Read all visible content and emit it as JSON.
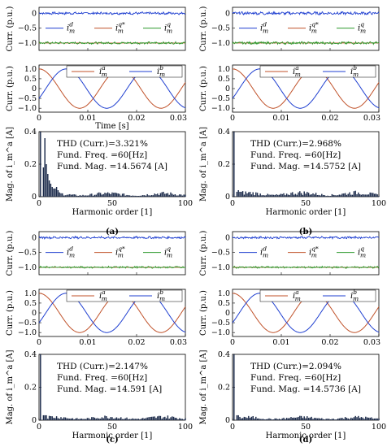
{
  "figure": {
    "subfigure_labels": [
      "(a)",
      "(b)",
      "(c)",
      "(d)"
    ]
  },
  "colors": {
    "d_axis": "#1f3fd0",
    "q_star": "#c0522a",
    "q_axis": "#2e9a2e",
    "phase_a": "#c0522a",
    "phase_b": "#1f3fd0",
    "harm_bar": "#1b2a4a"
  },
  "chart_data": [
    {
      "panel": "(a)",
      "top": {
        "type": "line",
        "ylabel": "Curr. (p.u.)",
        "yticks": [
          "0",
          "−0.5",
          "−1.0"
        ],
        "ylim": [
          -1.25,
          0.2
        ],
        "x_range": [
          0,
          0.03
        ],
        "series": [
          {
            "name": "i_m^d",
            "label_base": "i",
            "label_sub": "m",
            "label_sup": "d",
            "color": "#1f3fd0",
            "value": 0.0,
            "ripple": 0.035
          },
          {
            "name": "i_m^q*",
            "label_base": "i",
            "label_sub": "m",
            "label_sup": "q*",
            "color": "#c0522a",
            "value": -1.0,
            "ripple": 0.0
          },
          {
            "name": "i_m^q",
            "label_base": "i",
            "label_sub": "m",
            "label_sup": "q",
            "color": "#2e9a2e",
            "value": -1.0,
            "ripple": 0.03
          }
        ]
      },
      "middle": {
        "type": "line",
        "ylabel": "Curr. (p.u.)",
        "xlabel": "Time [s]",
        "xticks": [
          "0",
          "0.01",
          "0.02",
          "0.03"
        ],
        "yticks": [
          "1.0",
          "0.5",
          "0",
          "−0.5",
          "−1.0"
        ],
        "ylim": [
          -1.2,
          1.2
        ],
        "x_range": [
          0,
          0.03
        ],
        "series": [
          {
            "name": "i_m^a",
            "label_base": "i",
            "label_sub": "m",
            "label_sup": "a",
            "color": "#c0522a",
            "amplitude": 1.0,
            "frequency_hz": 60,
            "phase_deg": 90
          },
          {
            "name": "i_m^b",
            "label_base": "i",
            "label_sub": "m",
            "label_sup": "b",
            "color": "#1f3fd0",
            "amplitude": 1.0,
            "frequency_hz": 60,
            "phase_deg": -30
          }
        ]
      },
      "bottom": {
        "type": "bar",
        "ylabel": "Mag. of i_m^a [A]",
        "xlabel": "Harmonic order [1]",
        "xticks": [
          "0",
          "50",
          "100"
        ],
        "yticks": [
          "0.4",
          "0.2",
          "0"
        ],
        "ylim": [
          0,
          0.4
        ],
        "fundamental_bar": 0.4,
        "low_order_values": [
          0.0,
          0.4,
          0.0,
          0.18,
          0.36,
          0.2,
          0.14,
          0.1,
          0.08,
          0.06,
          0.05,
          0.05,
          0.06,
          0.04
        ],
        "noise_level": 0.025,
        "thd": "THD (Curr.)=3.321%",
        "fund_freq": "Fund. Freq. =60[Hz]",
        "fund_mag": "Fund. Mag. =14.5674 [A]"
      }
    },
    {
      "panel": "(b)",
      "top": {
        "type": "line",
        "ylabel": "Curr. (p.u.)",
        "yticks": [
          "0",
          "−0.5",
          "−1.0"
        ],
        "ylim": [
          -1.25,
          0.2
        ],
        "x_range": [
          0,
          0.03
        ],
        "series": [
          {
            "name": "i_m^d",
            "label_base": "i",
            "label_sub": "m",
            "label_sup": "d",
            "color": "#1f3fd0",
            "value": 0.0,
            "ripple": 0.04
          },
          {
            "name": "i_m^q*",
            "label_base": "i",
            "label_sub": "m",
            "label_sup": "q*",
            "color": "#c0522a",
            "value": -1.0,
            "ripple": 0.0
          },
          {
            "name": "i_m^q",
            "label_base": "i",
            "label_sub": "m",
            "label_sup": "q",
            "color": "#2e9a2e",
            "value": -1.0,
            "ripple": 0.035
          }
        ]
      },
      "middle": {
        "type": "line",
        "ylabel": "Curr. (p.u.)",
        "xticks": [
          "0",
          "0.01",
          "0.02",
          "0.03"
        ],
        "yticks": [
          "1.0",
          "0.5",
          "0",
          "−0.5",
          "−1.0"
        ],
        "ylim": [
          -1.2,
          1.2
        ],
        "x_range": [
          0,
          0.03
        ],
        "series": [
          {
            "name": "i_m^a",
            "label_base": "i",
            "label_sub": "m",
            "label_sup": "a",
            "color": "#c0522a",
            "amplitude": 1.0,
            "frequency_hz": 60,
            "phase_deg": 90
          },
          {
            "name": "i_m^b",
            "label_base": "i",
            "label_sub": "m",
            "label_sup": "b",
            "color": "#1f3fd0",
            "amplitude": 1.0,
            "frequency_hz": 60,
            "phase_deg": -30
          }
        ]
      },
      "bottom": {
        "type": "bar",
        "ylabel": "Mag. of i_m^a [A]",
        "xlabel": "Harmonic order [1]",
        "xticks": [
          "0",
          "50",
          "100"
        ],
        "yticks": [
          "0.4",
          "0.2",
          "0"
        ],
        "ylim": [
          0,
          0.4
        ],
        "fundamental_bar": 0.4,
        "low_order_values": [
          0.0,
          0.4,
          0.0,
          0.03,
          0.04,
          0.03,
          0.03
        ],
        "noise_level": 0.03,
        "thd": "THD (Curr.)=2.968%",
        "fund_freq": "Fund. Freq. =60[Hz]",
        "fund_mag": "Fund. Mag. =14.5752 [A]"
      }
    },
    {
      "panel": "(c)",
      "top": {
        "type": "line",
        "ylabel": "Curr. (p.u.)",
        "yticks": [
          "0",
          "−0.5",
          "−1.0"
        ],
        "ylim": [
          -1.25,
          0.2
        ],
        "x_range": [
          0,
          0.03
        ],
        "series": [
          {
            "name": "i_m^d",
            "label_base": "i",
            "label_sub": "m",
            "label_sup": "d",
            "color": "#1f3fd0",
            "value": 0.0,
            "ripple": 0.03
          },
          {
            "name": "i_m^q*",
            "label_base": "i",
            "label_sub": "m",
            "label_sup": "q*",
            "color": "#c0522a",
            "value": -1.0,
            "ripple": 0.0
          },
          {
            "name": "i_m^q",
            "label_base": "i",
            "label_sub": "m",
            "label_sup": "q",
            "color": "#2e9a2e",
            "value": -1.0,
            "ripple": 0.025
          }
        ]
      },
      "middle": {
        "type": "line",
        "ylabel": "Curr. (p.u.)",
        "xticks": [
          "0",
          "0.01",
          "0.02",
          "0.03"
        ],
        "yticks": [
          "1.0",
          "0.5",
          "0",
          "−0.5",
          "−1.0"
        ],
        "ylim": [
          -1.2,
          1.2
        ],
        "x_range": [
          0,
          0.03
        ],
        "series": [
          {
            "name": "i_m^a",
            "label_base": "i",
            "label_sub": "m",
            "label_sup": "a",
            "color": "#c0522a",
            "amplitude": 1.0,
            "frequency_hz": 60,
            "phase_deg": 90
          },
          {
            "name": "i_m^b",
            "label_base": "i",
            "label_sub": "m",
            "label_sup": "b",
            "color": "#1f3fd0",
            "amplitude": 1.0,
            "frequency_hz": 60,
            "phase_deg": -30
          }
        ]
      },
      "bottom": {
        "type": "bar",
        "ylabel": "Mag. of i_m^a [A]",
        "xlabel": "Harmonic order [1]",
        "xticks": [
          "0",
          "50",
          "100"
        ],
        "yticks": [
          "0.4",
          "0.2",
          "0"
        ],
        "ylim": [
          0,
          0.4
        ],
        "fundamental_bar": 0.4,
        "low_order_values": [
          0.0,
          0.4,
          0.0,
          0.03,
          0.03,
          0.03
        ],
        "noise_level": 0.025,
        "thd": "THD (Curr.)=2.147%",
        "fund_freq": "Fund. Freq. =60[Hz]",
        "fund_mag": "Fund. Mag. =14.591 [A]"
      }
    },
    {
      "panel": "(d)",
      "top": {
        "type": "line",
        "ylabel": "Curr. (p.u.)",
        "yticks": [
          "0",
          "−0.5",
          "−1.0"
        ],
        "ylim": [
          -1.25,
          0.2
        ],
        "x_range": [
          0,
          0.03
        ],
        "series": [
          {
            "name": "i_m^d",
            "label_base": "i",
            "label_sub": "m",
            "label_sup": "d",
            "color": "#1f3fd0",
            "value": 0.0,
            "ripple": 0.03
          },
          {
            "name": "i_m^q*",
            "label_base": "i",
            "label_sub": "m",
            "label_sup": "q*",
            "color": "#c0522a",
            "value": -1.0,
            "ripple": 0.0
          },
          {
            "name": "i_m^q",
            "label_base": "i",
            "label_sub": "m",
            "label_sup": "q",
            "color": "#2e9a2e",
            "value": -1.0,
            "ripple": 0.025
          }
        ]
      },
      "middle": {
        "type": "line",
        "ylabel": "Curr. (p.u.)",
        "xticks": [
          "0",
          "0.01",
          "0.02",
          "0.03"
        ],
        "yticks": [
          "1.0",
          "0.5",
          "0",
          "−0.5",
          "−1.0"
        ],
        "ylim": [
          -1.2,
          1.2
        ],
        "x_range": [
          0,
          0.03
        ],
        "series": [
          {
            "name": "i_m^a",
            "label_base": "i",
            "label_sub": "m",
            "label_sup": "a",
            "color": "#c0522a",
            "amplitude": 1.0,
            "frequency_hz": 60,
            "phase_deg": 90
          },
          {
            "name": "i_m^b",
            "label_base": "i",
            "label_sub": "m",
            "label_sup": "b",
            "color": "#1f3fd0",
            "amplitude": 1.0,
            "frequency_hz": 60,
            "phase_deg": -30
          }
        ]
      },
      "bottom": {
        "type": "bar",
        "ylabel": "Mag. of i_m^a [A]",
        "xlabel": "Harmonic order [1]",
        "xticks": [
          "0",
          "50",
          "100"
        ],
        "yticks": [
          "0.4",
          "0.2",
          "0"
        ],
        "ylim": [
          0,
          0.4
        ],
        "fundamental_bar": 0.4,
        "low_order_values": [
          0.0,
          0.4,
          0.0,
          0.03,
          0.03,
          0.02
        ],
        "noise_level": 0.022,
        "thd": "THD (Curr.)=2.094%",
        "fund_freq": "Fund. Freq. =60[Hz]",
        "fund_mag": "Fund. Mag. =14.5736 [A]"
      }
    }
  ]
}
